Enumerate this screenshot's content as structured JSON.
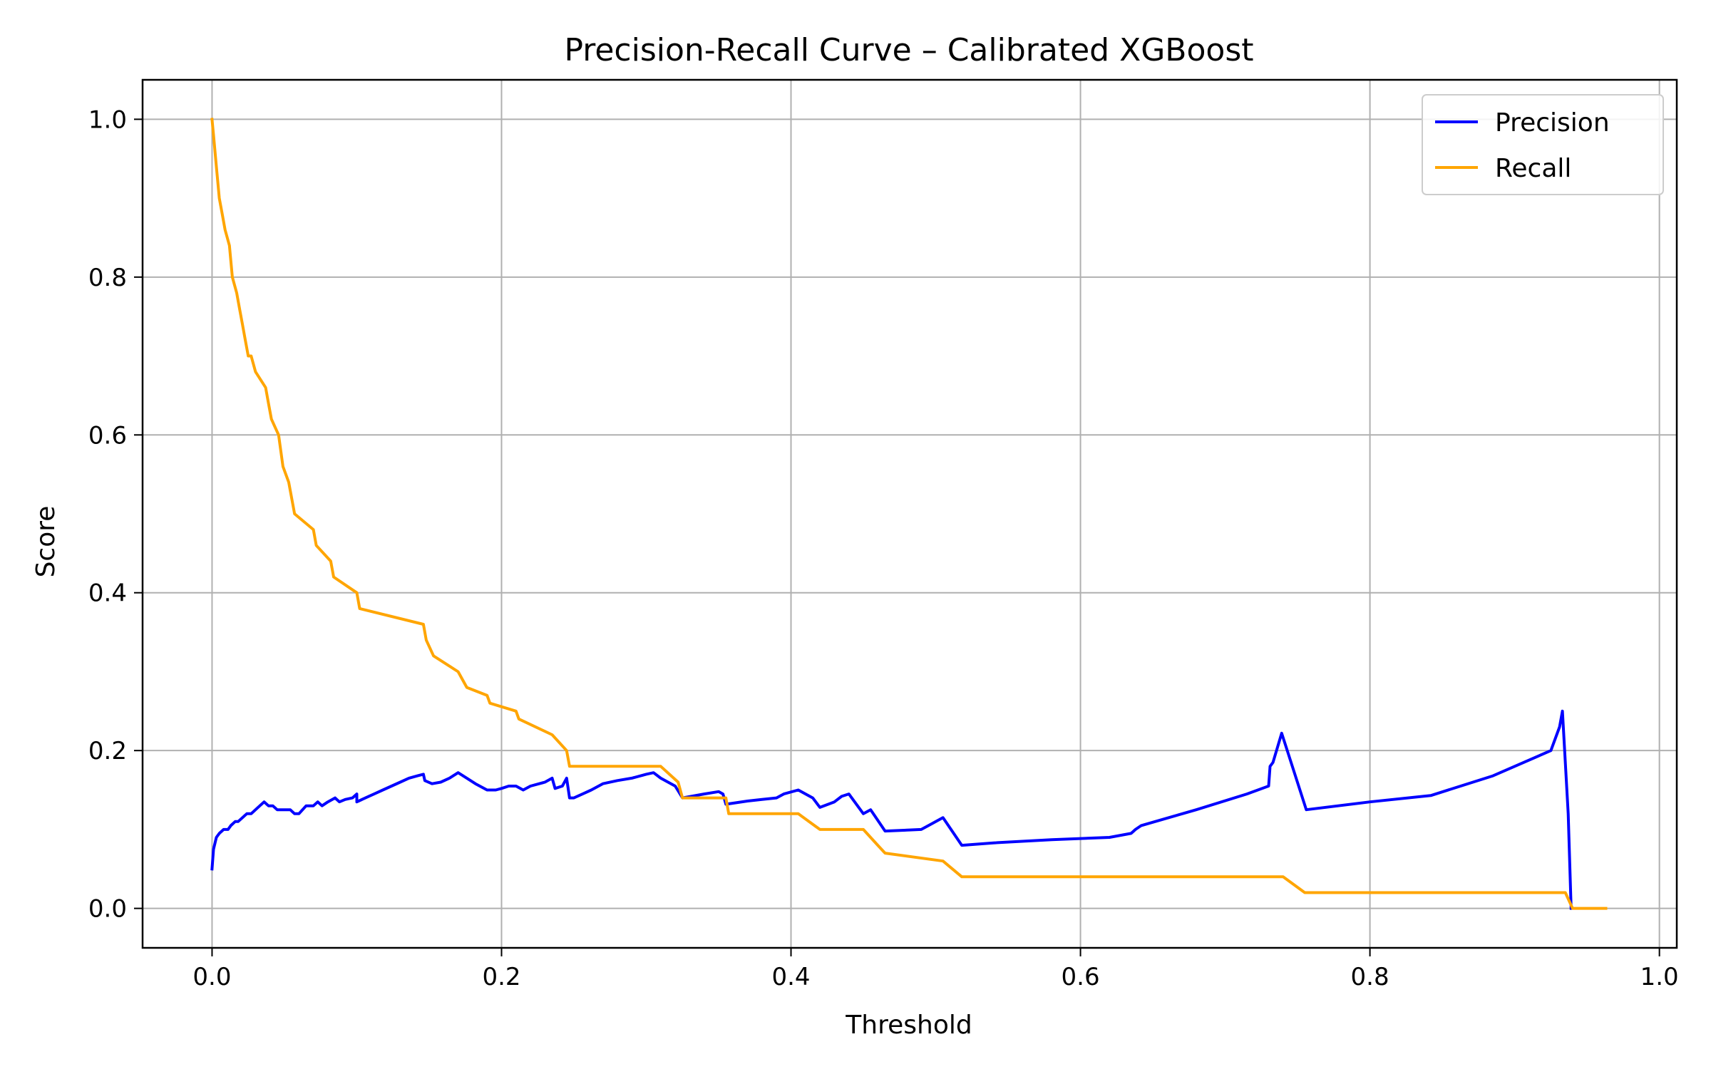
{
  "chart_data": {
    "type": "line",
    "title": "Precision-Recall Curve – Calibrated XGBoost",
    "xlabel": "Threshold",
    "ylabel": "Score",
    "xlim": [
      -0.048,
      1.012
    ],
    "ylim": [
      -0.05,
      1.05
    ],
    "grid": true,
    "legend_position": "top-right",
    "x_ticks": [
      "0.0",
      "0.2",
      "0.4",
      "0.6",
      "0.8",
      "1.0"
    ],
    "x_tick_values": [
      0.0,
      0.2,
      0.4,
      0.6,
      0.8,
      1.0
    ],
    "y_ticks": [
      "0.0",
      "0.2",
      "0.4",
      "0.6",
      "0.8",
      "1.0"
    ],
    "y_tick_values": [
      0.0,
      0.2,
      0.4,
      0.6,
      0.8,
      1.0
    ],
    "series": [
      {
        "name": "Precision",
        "color": "#0000ff",
        "x": [
          0.0,
          0.001,
          0.003,
          0.005,
          0.008,
          0.011,
          0.013,
          0.016,
          0.018,
          0.021,
          0.024,
          0.027,
          0.03,
          0.033,
          0.036,
          0.039,
          0.042,
          0.045,
          0.048,
          0.051,
          0.054,
          0.057,
          0.06,
          0.065,
          0.07,
          0.073,
          0.076,
          0.08,
          0.085,
          0.088,
          0.092,
          0.097,
          0.1,
          0.1,
          0.106,
          0.112,
          0.118,
          0.124,
          0.13,
          0.136,
          0.142,
          0.146,
          0.147,
          0.152,
          0.158,
          0.164,
          0.17,
          0.176,
          0.182,
          0.19,
          0.196,
          0.2,
          0.205,
          0.21,
          0.215,
          0.22,
          0.23,
          0.235,
          0.237,
          0.242,
          0.245,
          0.247,
          0.249,
          0.25,
          0.256,
          0.262,
          0.27,
          0.28,
          0.29,
          0.3,
          0.305,
          0.31,
          0.32,
          0.325,
          0.34,
          0.35,
          0.353,
          0.355,
          0.37,
          0.38,
          0.39,
          0.395,
          0.405,
          0.415,
          0.42,
          0.43,
          0.435,
          0.44,
          0.45,
          0.455,
          0.465,
          0.49,
          0.495,
          0.505,
          0.518,
          0.54,
          0.58,
          0.62,
          0.635,
          0.638,
          0.642,
          0.68,
          0.715,
          0.73,
          0.731,
          0.733,
          0.739,
          0.756,
          0.8,
          0.842,
          0.885,
          0.925,
          0.931,
          0.933,
          0.937,
          0.939
        ],
        "values": [
          0.05,
          0.075,
          0.09,
          0.095,
          0.1,
          0.1,
          0.105,
          0.11,
          0.11,
          0.115,
          0.12,
          0.12,
          0.125,
          0.13,
          0.135,
          0.13,
          0.13,
          0.125,
          0.125,
          0.125,
          0.125,
          0.12,
          0.12,
          0.13,
          0.13,
          0.135,
          0.13,
          0.135,
          0.14,
          0.135,
          0.138,
          0.14,
          0.145,
          0.135,
          0.14,
          0.145,
          0.15,
          0.155,
          0.16,
          0.165,
          0.168,
          0.17,
          0.162,
          0.158,
          0.16,
          0.165,
          0.172,
          0.165,
          0.158,
          0.15,
          0.15,
          0.152,
          0.155,
          0.155,
          0.15,
          0.155,
          0.16,
          0.165,
          0.152,
          0.155,
          0.165,
          0.14,
          0.14,
          0.14,
          0.145,
          0.15,
          0.158,
          0.162,
          0.165,
          0.17,
          0.172,
          0.165,
          0.155,
          0.14,
          0.145,
          0.148,
          0.145,
          0.132,
          0.136,
          0.138,
          0.14,
          0.145,
          0.15,
          0.14,
          0.128,
          0.135,
          0.142,
          0.145,
          0.12,
          0.125,
          0.098,
          0.1,
          0.105,
          0.115,
          0.08,
          0.083,
          0.087,
          0.09,
          0.095,
          0.1,
          0.105,
          0.125,
          0.145,
          0.155,
          0.18,
          0.185,
          0.222,
          0.125,
          0.135,
          0.143,
          0.168,
          0.2,
          0.23,
          0.25,
          0.12,
          0.0
        ]
      },
      {
        "name": "Recall",
        "color": "#ffa500",
        "x": [
          0.0,
          0.001,
          0.003,
          0.005,
          0.007,
          0.009,
          0.012,
          0.014,
          0.017,
          0.019,
          0.021,
          0.023,
          0.025,
          0.027,
          0.03,
          0.037,
          0.039,
          0.041,
          0.046,
          0.049,
          0.053,
          0.055,
          0.057,
          0.07,
          0.072,
          0.082,
          0.084,
          0.1,
          0.102,
          0.146,
          0.148,
          0.153,
          0.17,
          0.176,
          0.19,
          0.192,
          0.21,
          0.212,
          0.235,
          0.245,
          0.247,
          0.31,
          0.322,
          0.325,
          0.355,
          0.357,
          0.405,
          0.42,
          0.45,
          0.46,
          0.465,
          0.505,
          0.518,
          0.74,
          0.755,
          0.935,
          0.94,
          0.963
        ],
        "values": [
          1.0,
          0.98,
          0.94,
          0.9,
          0.88,
          0.86,
          0.84,
          0.8,
          0.78,
          0.76,
          0.74,
          0.72,
          0.7,
          0.7,
          0.68,
          0.66,
          0.64,
          0.62,
          0.6,
          0.56,
          0.54,
          0.52,
          0.5,
          0.48,
          0.46,
          0.44,
          0.42,
          0.4,
          0.38,
          0.36,
          0.34,
          0.32,
          0.3,
          0.28,
          0.27,
          0.26,
          0.25,
          0.24,
          0.22,
          0.2,
          0.18,
          0.18,
          0.16,
          0.14,
          0.14,
          0.12,
          0.12,
          0.1,
          0.1,
          0.08,
          0.07,
          0.06,
          0.04,
          0.04,
          0.02,
          0.02,
          0.0,
          0.0
        ]
      }
    ]
  }
}
